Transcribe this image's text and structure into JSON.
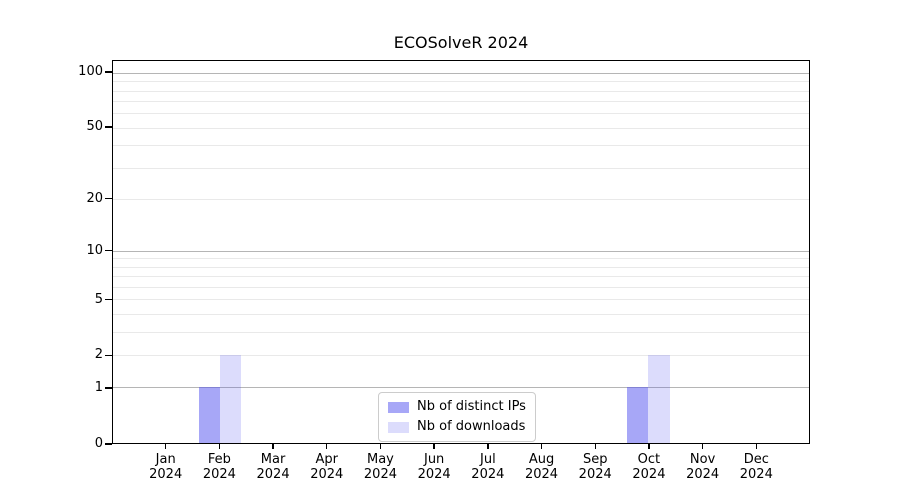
{
  "title": "ECOSolveR 2024",
  "legend": {
    "items": [
      {
        "label": "Nb of distinct IPs"
      },
      {
        "label": "Nb of downloads"
      }
    ]
  },
  "chart_data": {
    "type": "bar",
    "title": "ECOSolveR 2024",
    "categories": [
      "Jan\n2024",
      "Feb\n2024",
      "Mar\n2024",
      "Apr\n2024",
      "May\n2024",
      "Jun\n2024",
      "Jul\n2024",
      "Aug\n2024",
      "Sep\n2024",
      "Oct\n2024",
      "Nov\n2024",
      "Dec\n2024"
    ],
    "series": [
      {
        "name": "Nb of distinct IPs",
        "values": [
          0,
          1,
          0,
          0,
          0,
          0,
          0,
          0,
          0,
          1,
          0,
          0
        ],
        "color": "rgba(80,80,240,0.5)"
      },
      {
        "name": "Nb of downloads",
        "values": [
          0,
          2,
          0,
          0,
          0,
          0,
          0,
          0,
          0,
          2,
          0,
          0
        ],
        "color": "rgba(80,80,240,0.2)"
      }
    ],
    "xlabel": "",
    "ylabel": "",
    "yscale": "log1p",
    "ymax": 116.2,
    "yticks": [
      0,
      1,
      2,
      5,
      10,
      20,
      50,
      100
    ],
    "grid_major_values": [
      1,
      10,
      100
    ],
    "grid_minor_values": [
      2,
      3,
      4,
      5,
      6,
      7,
      8,
      9,
      20,
      30,
      40,
      50,
      60,
      70,
      80,
      90
    ],
    "grid": "on",
    "legend_position": "lower center",
    "bar_width_frac": 0.4,
    "colors": {
      "grid_major": "#b5b5b5",
      "grid_minor": "#e9e9e9",
      "spine": "#000000",
      "text": "#000000",
      "legend_border": "#cccccc"
    }
  }
}
